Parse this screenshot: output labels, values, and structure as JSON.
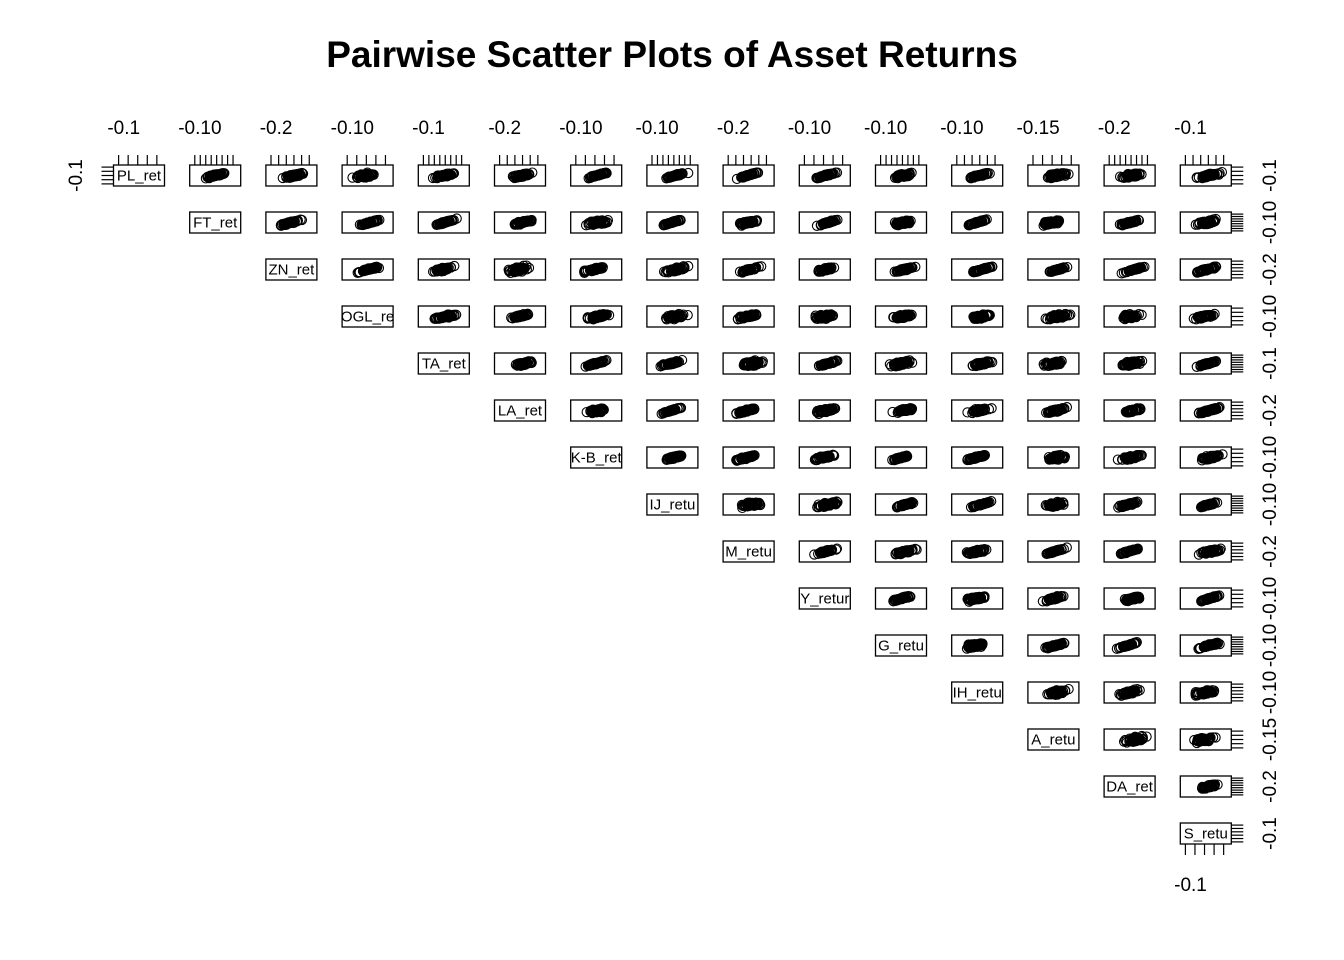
{
  "chart_data": {
    "type": "scatter",
    "layout": "upper-triangle-pairs",
    "title": "Pairwise Scatter Plots of Asset Returns",
    "variables": [
      "PL_ret",
      "FT_ret",
      "ZN_ret",
      "OGL_re",
      "TA_ret",
      "LA_ret",
      "K-B_ret",
      "IJ_retu",
      "M_retu",
      "Y_retur",
      "G_retu",
      "IH_retu",
      "A_retu",
      "DA_ret",
      "S_retu"
    ],
    "top_axis_labels": [
      "-0.1",
      "-0.10",
      "-0.2",
      "-0.10",
      "-0.1",
      "-0.2",
      "-0.10",
      "-0.10",
      "-0.2",
      "-0.10",
      "-0.10",
      "-0.10",
      "-0.15",
      "-0.2",
      "-0.1"
    ],
    "right_axis_labels": [
      "-0.1",
      "-0.10",
      "-0.2",
      "-0.10",
      "-0.1",
      "-0.2",
      "-0.10",
      "-0.10",
      "-0.2",
      "-0.10",
      "-0.10",
      "-0.10",
      "-0.15",
      "-0.2",
      "-0.1"
    ],
    "left_axis_label": "-0.1",
    "bottom_axis_label": "-0.1",
    "point_symbol": "open-circle",
    "grid": false,
    "legend": "none"
  }
}
